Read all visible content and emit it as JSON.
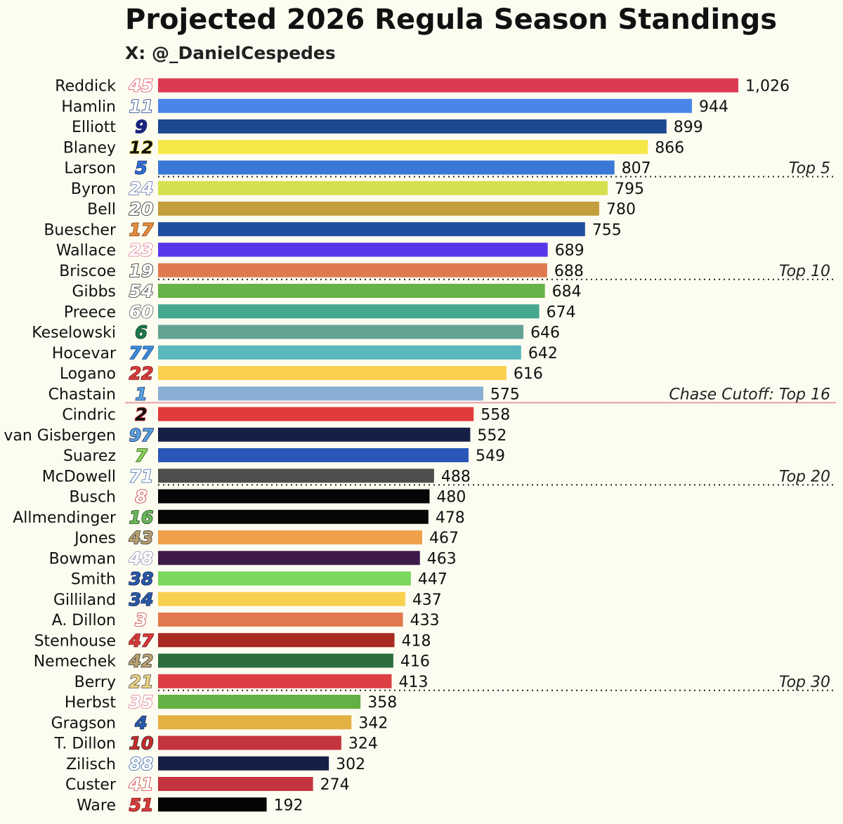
{
  "chart_data": {
    "type": "bar",
    "orientation": "horizontal",
    "title": "Projected 2026 Regula Season Standings",
    "subtitle": "X: @_DanielCespedes",
    "xlim": [
      0,
      1026
    ],
    "grid": false,
    "rows": [
      {
        "driver": "Reddick",
        "number": "45",
        "value": 1026,
        "value_label": "1,026",
        "color": "#dc3a54",
        "num_fill": "#ffffff",
        "num_stroke": "#e0506a"
      },
      {
        "driver": "Hamlin",
        "number": "11",
        "value": 944,
        "value_label": "944",
        "color": "#4a86e8",
        "num_fill": "#ffffff",
        "num_stroke": "#1a3a8a"
      },
      {
        "driver": "Elliott",
        "number": "9",
        "value": 899,
        "value_label": "899",
        "color": "#1e4890",
        "num_fill": "#1a237e",
        "num_stroke": "#1a237e"
      },
      {
        "driver": "Blaney",
        "number": "12",
        "value": 866,
        "value_label": "866",
        "color": "#f7e84a",
        "num_fill": "#111111",
        "num_stroke": "#f7e84a"
      },
      {
        "driver": "Larson",
        "number": "5",
        "value": 807,
        "value_label": "807",
        "color": "#3a78d8",
        "num_fill": "#2f6fd6",
        "num_stroke": "#1a2a6a"
      },
      {
        "driver": "Byron",
        "number": "24",
        "value": 795,
        "value_label": "795",
        "color": "#d6e04e",
        "num_fill": "#ffffff",
        "num_stroke": "#5a6ab0"
      },
      {
        "driver": "Bell",
        "number": "20",
        "value": 780,
        "value_label": "780",
        "color": "#c49e3e",
        "num_fill": "#ffffff",
        "num_stroke": "#222222"
      },
      {
        "driver": "Buescher",
        "number": "17",
        "value": 755,
        "value_label": "755",
        "color": "#1f4ea0",
        "num_fill": "#e88a3a",
        "num_stroke": "#7a4a1a"
      },
      {
        "driver": "Wallace",
        "number": "23",
        "value": 689,
        "value_label": "689",
        "color": "#5a36ea",
        "num_fill": "#ffffff",
        "num_stroke": "#e07a9a"
      },
      {
        "driver": "Briscoe",
        "number": "19",
        "value": 688,
        "value_label": "688",
        "color": "#e07a4e",
        "num_fill": "#ffffff",
        "num_stroke": "#222222"
      },
      {
        "driver": "Gibbs",
        "number": "54",
        "value": 684,
        "value_label": "684",
        "color": "#66b348",
        "num_fill": "#ffffff",
        "num_stroke": "#333333"
      },
      {
        "driver": "Preece",
        "number": "60",
        "value": 674,
        "value_label": "674",
        "color": "#46a88e",
        "num_fill": "#ffffff",
        "num_stroke": "#555555"
      },
      {
        "driver": "Keselowski",
        "number": "6",
        "value": 646,
        "value_label": "646",
        "color": "#64a394",
        "num_fill": "#1d7a4a",
        "num_stroke": "#0a3a22"
      },
      {
        "driver": "Hocevar",
        "number": "77",
        "value": 642,
        "value_label": "642",
        "color": "#58b8bc",
        "num_fill": "#3a8ad8",
        "num_stroke": "#1a4a8a"
      },
      {
        "driver": "Logano",
        "number": "22",
        "value": 616,
        "value_label": "616",
        "color": "#f9d04e",
        "num_fill": "#d83a3a",
        "num_stroke": "#7a1a1a"
      },
      {
        "driver": "Chastain",
        "number": "1",
        "value": 575,
        "value_label": "575",
        "color": "#8aafd6",
        "num_fill": "#5aa0e0",
        "num_stroke": "#1a3a6a"
      },
      {
        "driver": "Cindric",
        "number": "2",
        "value": 558,
        "value_label": "558",
        "color": "#e03c3c",
        "num_fill": "#111111",
        "num_stroke": "#d82a2a"
      },
      {
        "driver": "van Gisbergen",
        "number": "97",
        "value": 552,
        "value_label": "552",
        "color": "#162046",
        "num_fill": "#5aa0e0",
        "num_stroke": "#1a2a5a"
      },
      {
        "driver": "Suarez",
        "number": "7",
        "value": 549,
        "value_label": "549",
        "color": "#2a56b8",
        "num_fill": "#8ad05a",
        "num_stroke": "#2a5a1a"
      },
      {
        "driver": "McDowell",
        "number": "71",
        "value": 488,
        "value_label": "488",
        "color": "#4e4e4e",
        "num_fill": "#ffffff",
        "num_stroke": "#3a6ab0"
      },
      {
        "driver": "Busch",
        "number": "8",
        "value": 480,
        "value_label": "480",
        "color": "#050505",
        "num_fill": "#ffffff",
        "num_stroke": "#c82a2a"
      },
      {
        "driver": "Allmendinger",
        "number": "16",
        "value": 478,
        "value_label": "478",
        "color": "#060606",
        "num_fill": "#6ab85a",
        "num_stroke": "#1a4a1a"
      },
      {
        "driver": "Jones",
        "number": "43",
        "value": 467,
        "value_label": "467",
        "color": "#f0a04a",
        "num_fill": "#b8a070",
        "num_stroke": "#333333"
      },
      {
        "driver": "Bowman",
        "number": "48",
        "value": 463,
        "value_label": "463",
        "color": "#3e1a4a",
        "num_fill": "#ffffff",
        "num_stroke": "#8a8ab0"
      },
      {
        "driver": "Smith",
        "number": "38",
        "value": 447,
        "value_label": "447",
        "color": "#7ad85e",
        "num_fill": "#2a5aa8",
        "num_stroke": "#1a2a5a"
      },
      {
        "driver": "Gilliland",
        "number": "34",
        "value": 437,
        "value_label": "437",
        "color": "#f9d04e",
        "num_fill": "#2a5aa8",
        "num_stroke": "#1a2a5a"
      },
      {
        "driver": "A. Dillon",
        "number": "3",
        "value": 433,
        "value_label": "433",
        "color": "#e07a4e",
        "num_fill": "#ffffff",
        "num_stroke": "#c83a3a"
      },
      {
        "driver": "Stenhouse",
        "number": "47",
        "value": 418,
        "value_label": "418",
        "color": "#a82a22",
        "num_fill": "#d83a3a",
        "num_stroke": "#7a1a1a"
      },
      {
        "driver": "Nemechek",
        "number": "42",
        "value": 416,
        "value_label": "416",
        "color": "#2e6e3e",
        "num_fill": "#b8a070",
        "num_stroke": "#333333"
      },
      {
        "driver": "Berry",
        "number": "21",
        "value": 413,
        "value_label": "413",
        "color": "#dc3e44",
        "num_fill": "#e8d080",
        "num_stroke": "#555555"
      },
      {
        "driver": "Herbst",
        "number": "35",
        "value": 358,
        "value_label": "358",
        "color": "#64b044",
        "num_fill": "#ffffff",
        "num_stroke": "#e07a9a"
      },
      {
        "driver": "Gragson",
        "number": "4",
        "value": 342,
        "value_label": "342",
        "color": "#e4b044",
        "num_fill": "#2a5aa8",
        "num_stroke": "#1a2a5a"
      },
      {
        "driver": "T. Dillon",
        "number": "10",
        "value": 324,
        "value_label": "324",
        "color": "#c4343e",
        "num_fill": "#c82a2a",
        "num_stroke": "#333333"
      },
      {
        "driver": "Zilisch",
        "number": "88",
        "value": 302,
        "value_label": "302",
        "color": "#162046",
        "num_fill": "#ffffff",
        "num_stroke": "#2a5aa8"
      },
      {
        "driver": "Custer",
        "number": "41",
        "value": 274,
        "value_label": "274",
        "color": "#c4343e",
        "num_fill": "#ffffff",
        "num_stroke": "#c83a3a"
      },
      {
        "driver": "Ware",
        "number": "51",
        "value": 192,
        "value_label": "192",
        "color": "#050505",
        "num_fill": "#d83a3a",
        "num_stroke": "#7a1a1a"
      }
    ],
    "cutoffs": [
      {
        "after_rank": 5,
        "label": "Top 5",
        "style": "dotted",
        "color": "#222222"
      },
      {
        "after_rank": 10,
        "label": "Top 10",
        "style": "dotted",
        "color": "#222222"
      },
      {
        "after_rank": 16,
        "label": "Chase Cutoff: Top 16",
        "style": "solid",
        "color": "#e8a0a8"
      },
      {
        "after_rank": 20,
        "label": "Top 20",
        "style": "dotted",
        "color": "#222222"
      },
      {
        "after_rank": 30,
        "label": "Top 30",
        "style": "dotted",
        "color": "#222222"
      }
    ]
  }
}
